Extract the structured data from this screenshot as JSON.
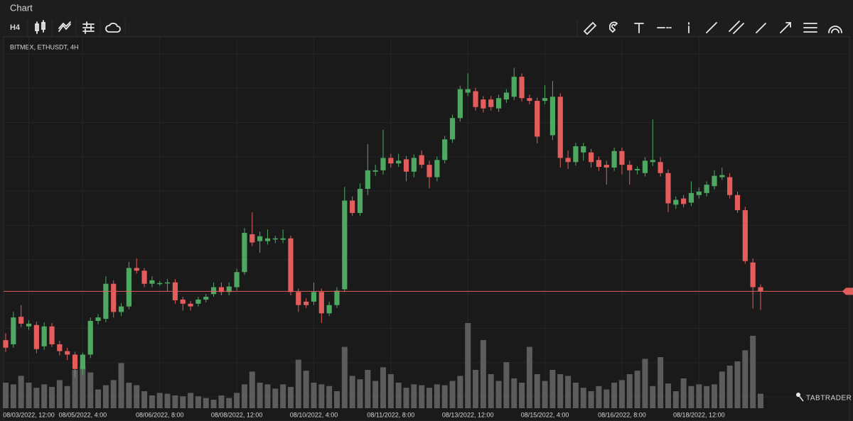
{
  "title": "Chart",
  "toolbar": {
    "interval": "H4"
  },
  "watermark": "TABTRADER",
  "chart_data": {
    "type": "candlestick",
    "subtitle": "BITMEX, ETHUSDT, 4H",
    "up_color": "#4fa862",
    "down_color": "#e35d5d",
    "volume_color": "#5c5c5c",
    "price_line_color": "#e35d5d",
    "ylim": [
      1530,
      2070
    ],
    "y2lim": [
      0,
      100
    ],
    "categories": [
      null,
      null,
      null,
      "08/03/2022, 12:00",
      null,
      null,
      null,
      null,
      null,
      null,
      "08/05/2022, 4:00",
      null,
      null,
      null,
      null,
      null,
      null,
      null,
      null,
      null,
      "08/06/2022, 8:00",
      null,
      null,
      null,
      null,
      null,
      null,
      null,
      null,
      null,
      "08/08/2022, 12:00",
      null,
      null,
      null,
      null,
      null,
      null,
      null,
      null,
      null,
      "08/10/2022, 4:00",
      null,
      null,
      null,
      null,
      null,
      null,
      null,
      null,
      null,
      "08/11/2022, 8:00",
      null,
      null,
      null,
      null,
      null,
      null,
      null,
      null,
      null,
      "08/13/2022, 12:00",
      null,
      null,
      null,
      null,
      null,
      null,
      null,
      null,
      null,
      "08/15/2022, 4:00",
      null,
      null,
      null,
      null,
      null,
      null,
      null,
      null,
      null,
      "08/16/2022, 8:00",
      null,
      null,
      null,
      null,
      null,
      null,
      null,
      null,
      null,
      "08/18/2022, 12:00",
      null,
      null,
      null,
      null,
      null,
      null,
      null,
      null
    ],
    "open": [
      1629,
      1623,
      1663,
      1649,
      1651,
      1620,
      1649,
      1623,
      1613,
      1608,
      1587,
      1608,
      1657,
      1660,
      1711,
      1670,
      1678,
      1734,
      1730,
      1711,
      1711,
      1712,
      1713,
      1688,
      1682,
      1682,
      1688,
      1696,
      1706,
      1699,
      1706,
      1728,
      1783,
      1773,
      1773,
      1776,
      1775,
      1777,
      1699,
      1685,
      1685,
      1699,
      1668,
      1680,
      1703,
      1832,
      1814,
      1849,
      1874,
      1876,
      1894,
      1886,
      1892,
      1874,
      1898,
      1884,
      1866,
      1891,
      1921,
      1952,
      1989,
      1991,
      1979,
      1979,
      1966,
      1979,
      1983,
      2012,
      1981,
      1977,
      1977,
      1927,
      1983,
      1894,
      1888,
      1902,
      1902,
      1891,
      1884,
      1880,
      1904,
      1884,
      1876,
      1872,
      1888,
      1888,
      1872,
      1826,
      1835,
      1829,
      1840,
      1843,
      1853,
      1866,
      1866,
      1840,
      1818,
      1742,
      1706
    ],
    "high": [
      1639,
      1670,
      1680,
      1658,
      1656,
      1655,
      1654,
      1628,
      1618,
      1612,
      1611,
      1662,
      1667,
      1722,
      1716,
      1683,
      1743,
      1748,
      1734,
      1722,
      1715,
      1718,
      1718,
      1692,
      1686,
      1692,
      1696,
      1713,
      1713,
      1713,
      1733,
      1792,
      1815,
      1787,
      1790,
      1781,
      1790,
      1781,
      1704,
      1690,
      1713,
      1704,
      1685,
      1706,
      1852,
      1838,
      1857,
      1914,
      1884,
      1935,
      1900,
      1900,
      1897,
      1899,
      1905,
      1890,
      1896,
      1926,
      1957,
      1999,
      2017,
      1996,
      1984,
      1984,
      1986,
      1994,
      2025,
      2017,
      1986,
      1982,
      2000,
      2006,
      1988,
      1905,
      1916,
      1916,
      1907,
      1896,
      1890,
      1909,
      1909,
      1890,
      1882,
      1895,
      1950,
      1895,
      1877,
      1838,
      1840,
      1860,
      1851,
      1860,
      1876,
      1880,
      1872,
      1845,
      1823,
      1748,
      1710
    ],
    "low": [
      1612,
      1618,
      1648,
      1644,
      1610,
      1615,
      1619,
      1607,
      1600,
      1575,
      1578,
      1603,
      1652,
      1655,
      1662,
      1664,
      1674,
      1726,
      1706,
      1706,
      1708,
      1700,
      1682,
      1672,
      1672,
      1678,
      1684,
      1692,
      1694,
      1694,
      1701,
      1724,
      1766,
      1756,
      1768,
      1770,
      1770,
      1694,
      1670,
      1676,
      1680,
      1654,
      1664,
      1676,
      1699,
      1810,
      1810,
      1840,
      1868,
      1870,
      1880,
      1881,
      1860,
      1866,
      1879,
      1850,
      1860,
      1886,
      1916,
      1947,
      1984,
      1963,
      1960,
      1963,
      1961,
      1974,
      1978,
      1976,
      1972,
      1915,
      1972,
      1920,
      1880,
      1878,
      1883,
      1890,
      1880,
      1875,
      1855,
      1875,
      1870,
      1855,
      1870,
      1867,
      1882,
      1867,
      1815,
      1820,
      1822,
      1824,
      1835,
      1838,
      1848,
      1862,
      1835,
      1814,
      1740,
      1675,
      1673
    ],
    "close": [
      1618,
      1662,
      1653,
      1653,
      1616,
      1649,
      1623,
      1613,
      1608,
      1587,
      1608,
      1657,
      1662,
      1711,
      1670,
      1678,
      1734,
      1730,
      1711,
      1716,
      1712,
      1713,
      1687,
      1682,
      1678,
      1688,
      1692,
      1706,
      1699,
      1707,
      1728,
      1785,
      1771,
      1780,
      1777,
      1777,
      1777,
      1699,
      1680,
      1680,
      1699,
      1668,
      1680,
      1701,
      1832,
      1814,
      1849,
      1876,
      1876,
      1894,
      1886,
      1890,
      1874,
      1894,
      1884,
      1866,
      1891,
      1921,
      1952,
      1994,
      1994,
      1968,
      1966,
      1968,
      1981,
      1989,
      2012,
      1981,
      1977,
      1925,
      1981,
      1983,
      1894,
      1888,
      1911,
      1911,
      1888,
      1881,
      1880,
      1904,
      1884,
      1876,
      1878,
      1890,
      1891,
      1872,
      1828,
      1833,
      1827,
      1843,
      1845,
      1855,
      1868,
      1869,
      1840,
      1818,
      1744,
      1706,
      1700
    ],
    "volume": [
      30,
      28,
      38,
      30,
      24,
      28,
      25,
      33,
      26,
      45,
      50,
      42,
      22,
      27,
      33,
      53,
      30,
      27,
      20,
      15,
      18,
      17,
      15,
      14,
      18,
      14,
      12,
      10,
      15,
      12,
      18,
      28,
      43,
      30,
      28,
      23,
      28,
      25,
      57,
      44,
      30,
      28,
      26,
      20,
      72,
      38,
      34,
      45,
      32,
      48,
      40,
      30,
      24,
      28,
      27,
      24,
      28,
      27,
      32,
      38,
      100,
      45,
      80,
      40,
      32,
      54,
      35,
      30,
      72,
      40,
      32,
      45,
      40,
      38,
      30,
      24,
      20,
      26,
      22,
      30,
      33,
      40,
      44,
      58,
      26,
      60,
      29,
      20,
      35,
      26,
      28,
      26,
      28,
      43,
      50,
      55,
      68,
      85,
      17
    ]
  }
}
